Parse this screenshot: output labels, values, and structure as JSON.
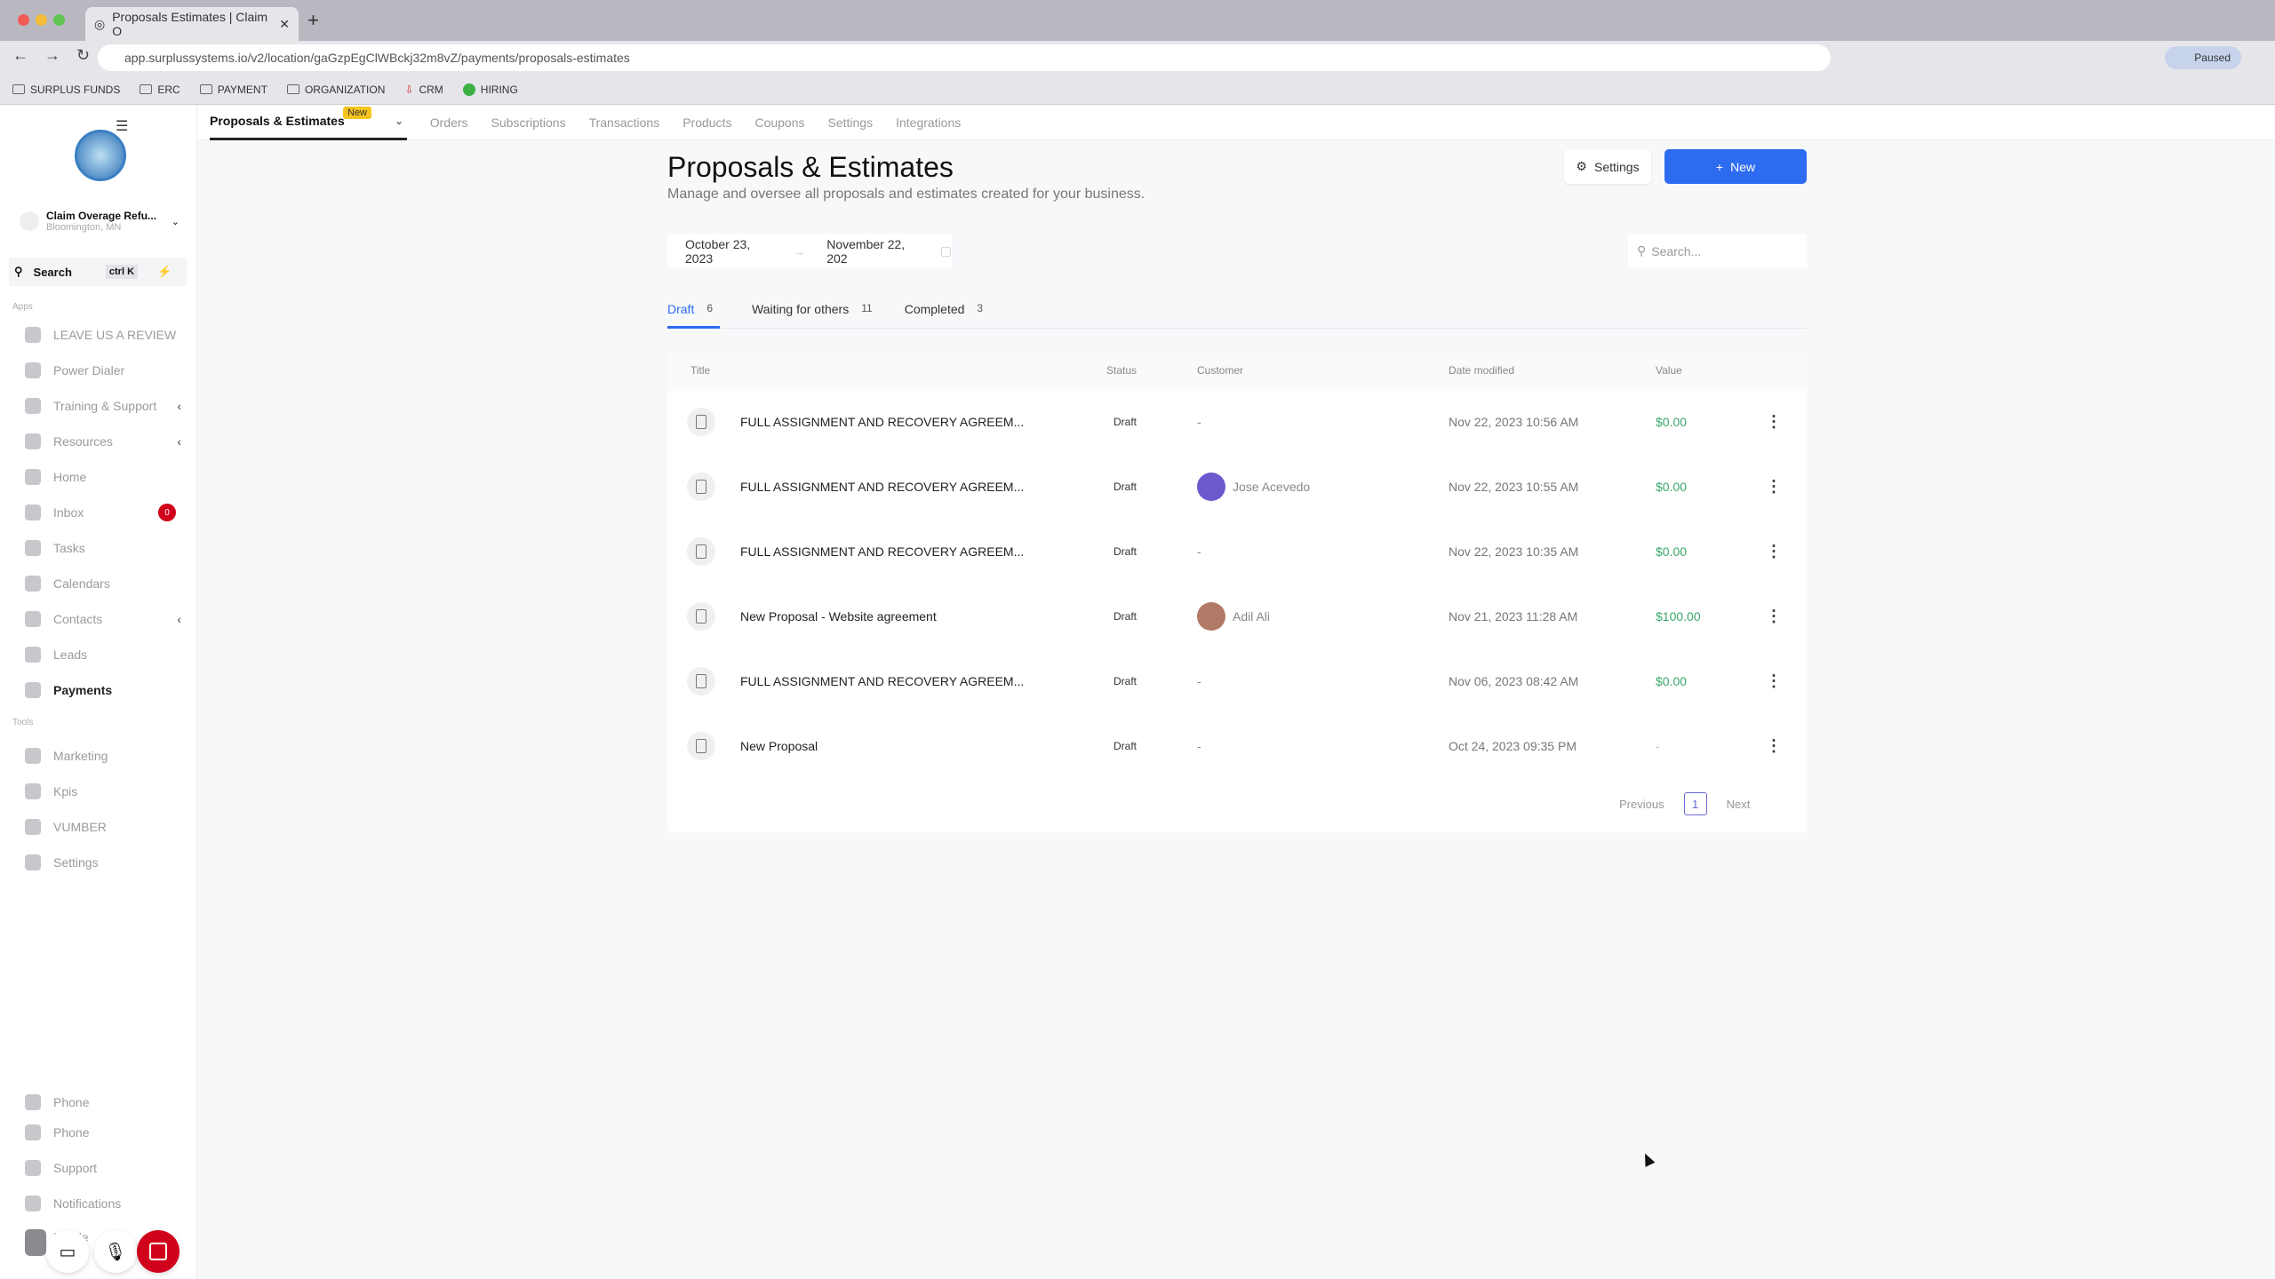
{
  "browser": {
    "tab_title": "Proposals Estimates | Claim O",
    "url": "app.surplussystems.io/v2/location/gaGzpEgClWBckj32m8vZ/payments/proposals-estimates",
    "profile": "Paused",
    "bookmarks": [
      "SURPLUS FUNDS",
      "ERC",
      "PAYMENT",
      "ORGANIZATION",
      "CRM",
      "HIRING"
    ]
  },
  "sidebar": {
    "account_name": "Claim Overage Refu...",
    "account_location": "Bloomington, MN",
    "search_label": "Search",
    "search_shortcut": "ctrl K",
    "apps_label": "Apps",
    "tools_label": "Tools",
    "apps": [
      {
        "label": "LEAVE US A REVIEW",
        "icon": "hand-icon"
      },
      {
        "label": "Power Dialer",
        "icon": "phone-icon"
      },
      {
        "label": "Training & Support",
        "icon": "megaphone-icon",
        "expandable": true
      },
      {
        "label": "Resources",
        "icon": "folder-icon",
        "expandable": true
      },
      {
        "label": "Home",
        "icon": "home-icon"
      },
      {
        "label": "Inbox",
        "icon": "inbox-icon",
        "badge": "0"
      },
      {
        "label": "Tasks",
        "icon": "tasks-icon"
      },
      {
        "label": "Calendars",
        "icon": "calendar-icon"
      },
      {
        "label": "Contacts",
        "icon": "contacts-icon",
        "expandable": true
      },
      {
        "label": "Leads",
        "icon": "filter-icon"
      },
      {
        "label": "Payments",
        "icon": "payments-icon",
        "active": true
      }
    ],
    "tools": [
      {
        "label": "Marketing",
        "icon": "marketing-icon"
      },
      {
        "label": "Kpis",
        "icon": "kpis-icon"
      },
      {
        "label": "VUMBER",
        "icon": "phone-icon"
      },
      {
        "label": "Settings",
        "icon": "gear-icon"
      }
    ],
    "bottom": [
      {
        "label": "Phone",
        "icon": "phone-icon"
      },
      {
        "label": "Phone",
        "icon": "phone-icon"
      },
      {
        "label": "Support",
        "icon": "chat-icon"
      },
      {
        "label": "Notifications",
        "icon": "bell-icon"
      },
      {
        "label": "Profile",
        "icon": "avatar"
      }
    ]
  },
  "topnav": {
    "active": "Proposals & Estimates",
    "badge": "New",
    "items": [
      "Orders",
      "Subscriptions",
      "Transactions",
      "Products",
      "Coupons",
      "Settings",
      "Integrations"
    ]
  },
  "page": {
    "title": "Proposals & Estimates",
    "subtitle": "Manage and oversee all proposals and estimates created for your business.",
    "settings_label": "Settings",
    "new_label": "New",
    "date_start": "October 23, 2023",
    "date_end": "November 22, 202",
    "search_placeholder": "Search...",
    "tabs": [
      {
        "label": "Draft",
        "count": "6",
        "active": true
      },
      {
        "label": "Waiting for others",
        "count": "11"
      },
      {
        "label": "Completed",
        "count": "3"
      }
    ]
  },
  "table": {
    "columns": [
      "Title",
      "Status",
      "Customer",
      "Date modified",
      "Value"
    ],
    "rows": [
      {
        "title": "FULL ASSIGNMENT AND RECOVERY AGREEM...",
        "status": "Draft",
        "customer": "-",
        "date": "Nov 22, 2023 10:56 AM",
        "value": "$0.00"
      },
      {
        "title": "FULL ASSIGNMENT AND RECOVERY AGREEM...",
        "status": "Draft",
        "customer": "Jose Acevedo",
        "avatar_color": "#6a5acd",
        "date": "Nov 22, 2023 10:55 AM",
        "value": "$0.00"
      },
      {
        "title": "FULL ASSIGNMENT AND RECOVERY AGREEM...",
        "status": "Draft",
        "customer": "-",
        "date": "Nov 22, 2023 10:35 AM",
        "value": "$0.00"
      },
      {
        "title": "New Proposal - Website agreement",
        "status": "Draft",
        "customer": "Adil Ali",
        "avatar_color": "#b07a66",
        "date": "Nov 21, 2023 11:28 AM",
        "value": "$100.00"
      },
      {
        "title": "FULL ASSIGNMENT AND RECOVERY AGREEM...",
        "status": "Draft",
        "customer": "-",
        "date": "Nov 06, 2023 08:42 AM",
        "value": "$0.00"
      },
      {
        "title": "New Proposal",
        "status": "Draft",
        "customer": "-",
        "date": "Oct 24, 2023 09:35 PM",
        "value": "-"
      }
    ]
  },
  "pagination": {
    "previous": "Previous",
    "current": "1",
    "next": "Next"
  },
  "colors": {
    "accent": "#2d6bf0",
    "value_green": "#3aa76d",
    "badge_red": "#d0021b"
  }
}
